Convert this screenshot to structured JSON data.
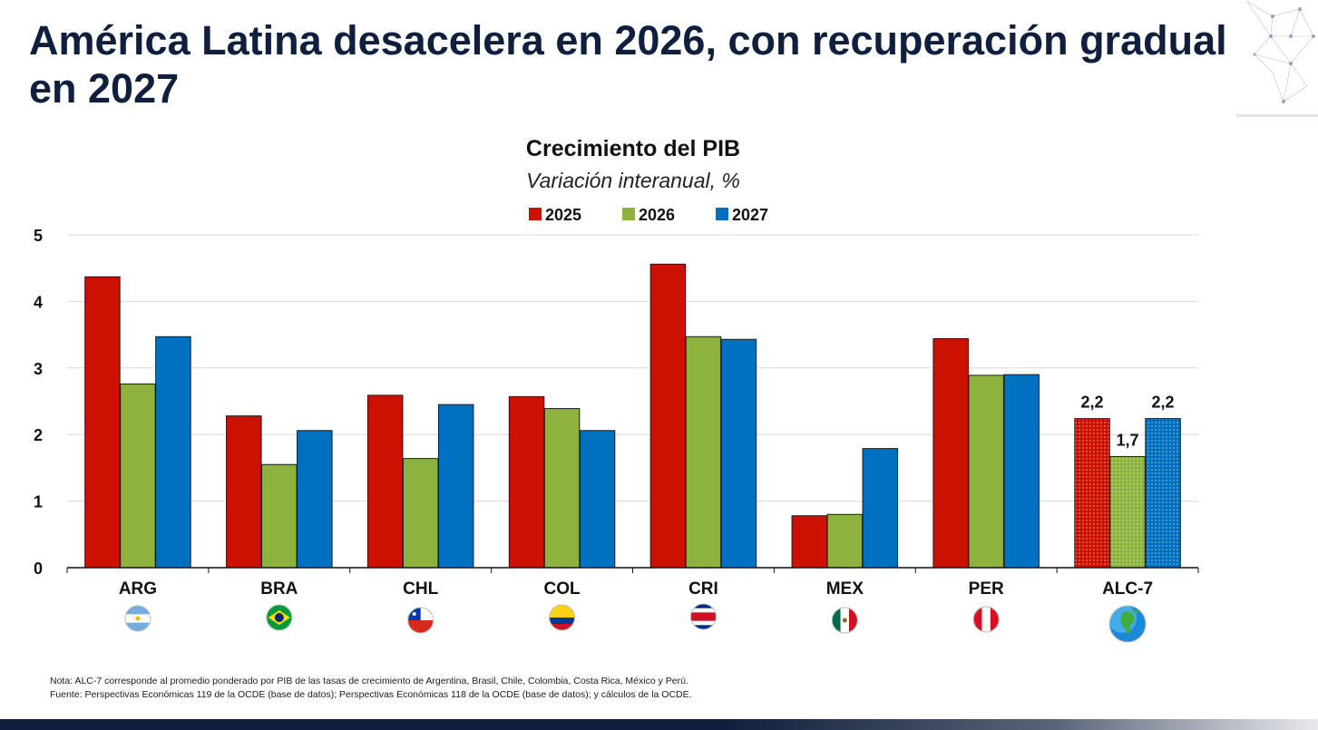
{
  "slide": {
    "title": "América Latina desacelera en 2026, con recuperación gradual en 2027"
  },
  "chart_data": {
    "type": "bar",
    "title": "Crecimiento del PIB",
    "subtitle": "Variación interanual, %",
    "categories": [
      "ARG",
      "BRA",
      "CHL",
      "COL",
      "CRI",
      "MEX",
      "PER",
      "ALC-7"
    ],
    "series": [
      {
        "name": "2025",
        "color": "#cc1100",
        "values": [
          4.37,
          2.28,
          2.59,
          2.57,
          4.56,
          0.78,
          3.44,
          2.24
        ]
      },
      {
        "name": "2026",
        "color": "#8db33e",
        "values": [
          2.76,
          1.55,
          1.64,
          2.39,
          3.47,
          0.8,
          2.89,
          1.67
        ]
      },
      {
        "name": "2027",
        "color": "#0070c0",
        "values": [
          3.47,
          2.06,
          2.45,
          2.06,
          3.43,
          1.79,
          2.9,
          2.24
        ]
      }
    ],
    "data_labels": {
      "category": "ALC-7",
      "labels": [
        "2,2",
        "1,7",
        "2,2"
      ]
    },
    "ylim": [
      0,
      5
    ],
    "yticks": [
      0,
      1,
      2,
      3,
      4,
      5
    ],
    "grid": true,
    "legend_position": "top-center",
    "flag_icons": [
      "argentina-flag-icon",
      "brazil-flag-icon",
      "chile-flag-icon",
      "colombia-flag-icon",
      "costa-rica-flag-icon",
      "mexico-flag-icon",
      "peru-flag-icon",
      "globe-icon"
    ]
  },
  "notes": {
    "nota": "Nota: ALC-7 corresponde al promedio ponderado por PIB de las tasas de crecimiento de Argentina, Brasil, Chile, Colombia, Costa Rica, México y Perú.",
    "fuente": "Fuente: Perspectivas Económicas 119 de la OCDE (base de datos); Perspectivas Económicas 118 de la OCDE (base de datos); y cálculos de la OCDE."
  }
}
